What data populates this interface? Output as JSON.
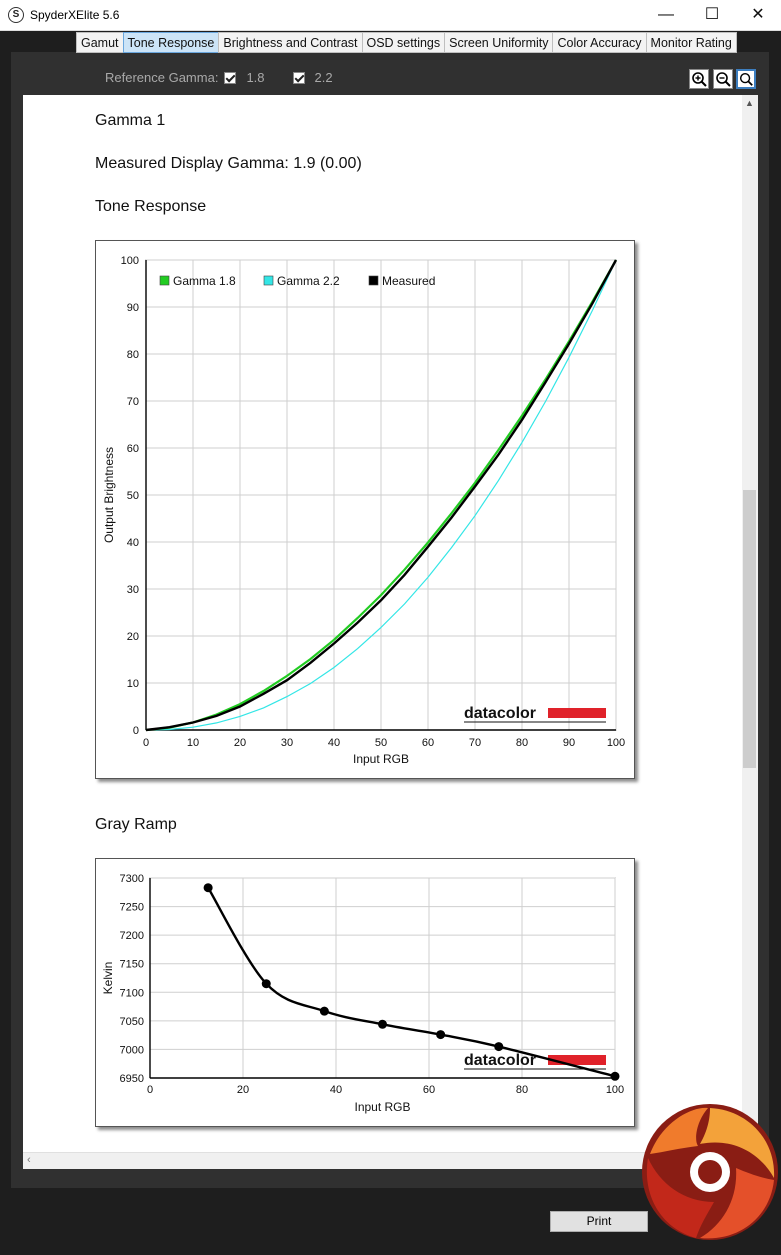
{
  "window": {
    "title": "SpyderXElite 5.6",
    "app_icon_glyph": "S"
  },
  "tabs": [
    {
      "label": "Gamut",
      "active": false
    },
    {
      "label": "Tone Response",
      "active": true
    },
    {
      "label": "Brightness and Contrast",
      "active": false
    },
    {
      "label": "OSD settings",
      "active": false
    },
    {
      "label": "Screen Uniformity",
      "active": false
    },
    {
      "label": "Color Accuracy",
      "active": false
    },
    {
      "label": "Monitor Rating",
      "active": false
    }
  ],
  "reference_gamma": {
    "label": "Reference Gamma:",
    "options": [
      {
        "value": "1.8",
        "checked": true
      },
      {
        "value": "2.2",
        "checked": true
      }
    ]
  },
  "zoom_icons": [
    "zoom-in-icon",
    "zoom-out-icon",
    "zoom-fit-icon"
  ],
  "report": {
    "heading": "Gamma 1",
    "measured": "Measured Display Gamma: 1.9 (0.00)",
    "tone_title": "Tone Response",
    "gray_title": "Gray Ramp"
  },
  "watermark": "datacolor",
  "print_label": "Print",
  "colors": {
    "gamma18": "#22cc22",
    "gamma22": "#33e6e6",
    "measured": "#000000",
    "brand_red": "#e0222a",
    "tab_active": "#cce4f7"
  },
  "chart_data": [
    {
      "type": "line",
      "xlabel": "Input RGB",
      "ylabel": "Output Brightness",
      "xlim": [
        0,
        100
      ],
      "ylim": [
        0,
        100
      ],
      "x_ticks": [
        0,
        10,
        20,
        30,
        40,
        50,
        60,
        70,
        80,
        90,
        100
      ],
      "y_ticks": [
        0,
        10,
        20,
        30,
        40,
        50,
        60,
        70,
        80,
        90,
        100
      ],
      "grid": true,
      "legend": "top-left",
      "series": [
        {
          "name": "Gamma 1.8",
          "color": "#22cc22",
          "x": [
            0,
            5,
            10,
            15,
            20,
            25,
            30,
            35,
            40,
            45,
            50,
            55,
            60,
            65,
            70,
            75,
            80,
            85,
            90,
            95,
            100
          ],
          "y": [
            0,
            0.5,
            1.6,
            3.3,
            5.5,
            8.3,
            11.5,
            15.1,
            19.2,
            23.8,
            28.7,
            34.1,
            39.9,
            46.1,
            52.6,
            59.6,
            66.9,
            74.6,
            82.7,
            91.2,
            100
          ]
        },
        {
          "name": "Gamma 2.2",
          "color": "#33e6e6",
          "x": [
            0,
            5,
            10,
            15,
            20,
            25,
            30,
            35,
            40,
            45,
            50,
            55,
            60,
            65,
            70,
            75,
            80,
            85,
            90,
            95,
            100
          ],
          "y": [
            0,
            0.1,
            0.6,
            1.5,
            2.9,
            4.7,
            7.1,
            9.9,
            13.3,
            17.3,
            21.8,
            26.8,
            32.5,
            38.8,
            45.6,
            53.1,
            61.2,
            69.9,
            79.3,
            89.3,
            100
          ]
        },
        {
          "name": "Measured",
          "color": "#000000",
          "x": [
            0,
            5,
            10,
            15,
            20,
            25,
            30,
            35,
            40,
            45,
            50,
            55,
            60,
            65,
            70,
            75,
            80,
            85,
            90,
            95,
            100
          ],
          "y": [
            0,
            0.6,
            1.6,
            3.0,
            5.0,
            7.7,
            10.6,
            14.3,
            18.4,
            22.8,
            27.6,
            33.0,
            39.0,
            45.2,
            51.8,
            58.6,
            66.0,
            74.0,
            82.2,
            90.8,
            100
          ]
        }
      ]
    },
    {
      "type": "line",
      "xlabel": "Input RGB",
      "ylabel": "Kelvin",
      "xlim": [
        0,
        100
      ],
      "ylim": [
        6950,
        7300
      ],
      "x_ticks": [
        0,
        20,
        40,
        60,
        80,
        100
      ],
      "y_ticks": [
        6950,
        7000,
        7050,
        7100,
        7150,
        7200,
        7250,
        7300
      ],
      "grid": true,
      "series": [
        {
          "x": [
            12.5,
            25,
            37.5,
            50,
            62.5,
            75,
            100
          ],
          "y": [
            7283,
            7115,
            7067,
            7044,
            7026,
            7005,
            6953
          ]
        }
      ]
    }
  ]
}
